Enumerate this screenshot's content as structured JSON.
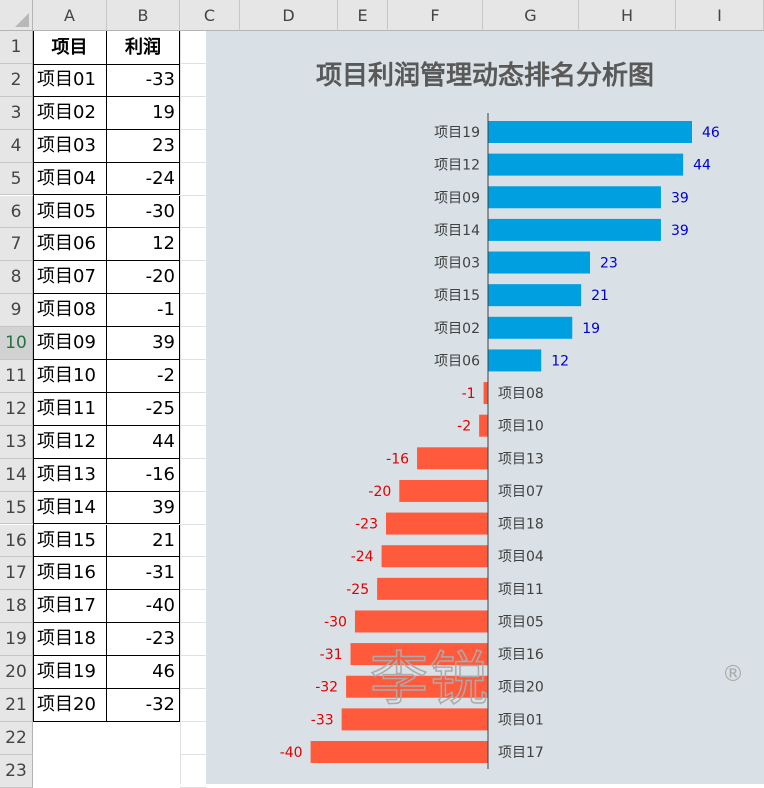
{
  "sheet": {
    "columns": [
      "A",
      "B",
      "C",
      "D",
      "E",
      "F",
      "G",
      "H",
      "I"
    ],
    "rows": [
      "1",
      "2",
      "3",
      "4",
      "5",
      "6",
      "7",
      "8",
      "9",
      "10",
      "11",
      "12",
      "13",
      "14",
      "15",
      "16",
      "17",
      "18",
      "19",
      "20",
      "21",
      "22",
      "23"
    ],
    "selected_row": "10",
    "table_header": {
      "project": "项目",
      "profit": "利润"
    },
    "table_rows": [
      {
        "project": "项目01",
        "profit": "-33"
      },
      {
        "project": "项目02",
        "profit": "19"
      },
      {
        "project": "项目03",
        "profit": "23"
      },
      {
        "project": "项目04",
        "profit": "-24"
      },
      {
        "project": "项目05",
        "profit": "-30"
      },
      {
        "project": "项目06",
        "profit": "12"
      },
      {
        "project": "项目07",
        "profit": "-20"
      },
      {
        "project": "项目08",
        "profit": "-1"
      },
      {
        "project": "项目09",
        "profit": "39"
      },
      {
        "project": "项目10",
        "profit": "-2"
      },
      {
        "project": "项目11",
        "profit": "-25"
      },
      {
        "project": "项目12",
        "profit": "44"
      },
      {
        "project": "项目13",
        "profit": "-16"
      },
      {
        "project": "项目14",
        "profit": "39"
      },
      {
        "project": "项目15",
        "profit": "21"
      },
      {
        "project": "项目16",
        "profit": "-31"
      },
      {
        "project": "项目17",
        "profit": "-40"
      },
      {
        "project": "项目18",
        "profit": "-23"
      },
      {
        "project": "项目19",
        "profit": "46"
      },
      {
        "project": "项目20",
        "profit": "-32"
      }
    ]
  },
  "chart_data": {
    "type": "bar",
    "orientation": "horizontal",
    "title": "项目利润管理动态排名分析图",
    "categories": [
      "项目19",
      "项目12",
      "项目09",
      "项目14",
      "项目03",
      "项目15",
      "项目02",
      "项目06",
      "项目08",
      "项目10",
      "项目13",
      "项目07",
      "项目18",
      "项目04",
      "项目11",
      "项目05",
      "项目16",
      "项目20",
      "项目01",
      "项目17"
    ],
    "values": [
      46,
      44,
      39,
      39,
      23,
      21,
      19,
      12,
      -1,
      -2,
      -16,
      -20,
      -23,
      -24,
      -25,
      -30,
      -31,
      -32,
      -33,
      -40
    ],
    "xlim": [
      -40,
      46
    ],
    "grid": false,
    "legend": "none",
    "colors": {
      "positive": "#00a0e0",
      "negative": "#ff5a3c",
      "positive_label": "#0000cc",
      "negative_label": "#e00000",
      "background": "#d9e1e6"
    }
  },
  "watermark": {
    "text": "李锐",
    "mark": "®"
  }
}
